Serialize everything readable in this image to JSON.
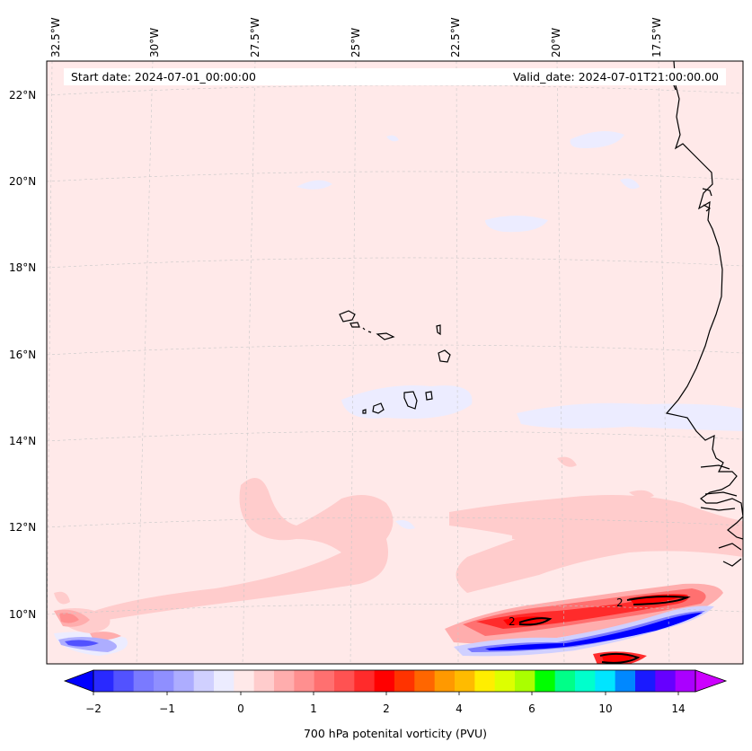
{
  "colors": {
    "background_field": "#ffe9e9",
    "positive_low": "#ffcccc",
    "negative_low": "#ececff",
    "coast": "#000000"
  },
  "header": {
    "start_date": "Start date: 2024-07-01_00:00:00",
    "valid_date": "Valid_date: 2024-07-01T21:00:00.00"
  },
  "map": {
    "longitude_labels": [
      "32.5°W",
      "30°W",
      "27.5°W",
      "25°W",
      "22.5°W",
      "20°W",
      "17.5°W"
    ],
    "latitude_labels": [
      "22°N",
      "20°N",
      "18°N",
      "16°N",
      "14°N",
      "12°N",
      "10°N"
    ],
    "contour_labels": [
      "2",
      "2"
    ]
  },
  "colorbar": {
    "ticks": [
      "−2",
      "−1",
      "0",
      "1",
      "2",
      "4",
      "6",
      "10",
      "14"
    ],
    "label": "700 hPa potenital vorticity (PVU)",
    "colors": [
      "#0000ff",
      "#2929ff",
      "#5252ff",
      "#7a7aff",
      "#8f8fff",
      "#adadff",
      "#d0d0ff",
      "#ececff",
      "#ffe9e9",
      "#ffcccc",
      "#ffadad",
      "#ff8f8f",
      "#ff7070",
      "#ff5252",
      "#ff2b2b",
      "#ff0000",
      "#ff3300",
      "#ff6600",
      "#ff9900",
      "#ffbb00",
      "#ffee00",
      "#ddff00",
      "#aaff00",
      "#00ff00",
      "#00ff88",
      "#00ffcc",
      "#00e5ff",
      "#0088ff",
      "#1a1aff",
      "#6600ff",
      "#aa00ff",
      "#cc00ff"
    ]
  }
}
